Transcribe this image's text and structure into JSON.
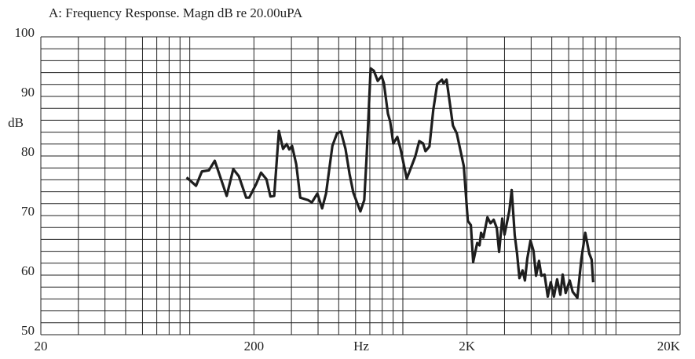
{
  "chart_data": {
    "type": "line",
    "title": "A: Frequency Response. Magn dB re 20.00uPA",
    "y_label": "dB",
    "x_label": "Hz",
    "xscale": "log",
    "xlim": [
      20,
      20000
    ],
    "xticks": [
      20,
      200,
      {
        "value": 2000,
        "label": "2K"
      },
      {
        "value": 20000,
        "label": "20K"
      }
    ],
    "xgrid": [
      30,
      40,
      50,
      60,
      70,
      80,
      90,
      100,
      300,
      400,
      500,
      600,
      700,
      800,
      900,
      1000,
      3000,
      4000,
      5000,
      6000,
      7000,
      8000,
      9000,
      10000
    ],
    "ylim": [
      50,
      100
    ],
    "yticks": [
      50,
      60,
      70,
      80,
      90,
      100
    ],
    "ygrid": [
      52,
      54,
      56,
      58,
      62,
      64,
      66,
      68,
      72,
      74,
      76,
      78,
      82,
      84,
      86,
      88,
      92,
      94,
      96,
      98
    ],
    "grid": true,
    "color": "#1e1e1e",
    "x": [
      96.6,
      107,
      114,
      123,
      131,
      149,
      160,
      170,
      184,
      190,
      205,
      216,
      229,
      239,
      249,
      262,
      274,
      285,
      293,
      302,
      316,
      330,
      359,
      374,
      397,
      418,
      436,
      467,
      491,
      512,
      538,
      562,
      586,
      632,
      659,
      676,
      706,
      731,
      762,
      795,
      815,
      851,
      872,
      902,
      942,
      975,
      1043,
      1143,
      1194,
      1245,
      1277,
      1333,
      1390,
      1450,
      1526,
      1551,
      1604,
      1718,
      1791,
      1932,
      2018,
      2085,
      2138,
      2233,
      2290,
      2329,
      2388,
      2494,
      2578,
      2668,
      2760,
      2830,
      2927,
      3000,
      3160,
      3242,
      3350,
      3436,
      3524,
      3648,
      3740,
      3838,
      3972,
      4102,
      4218,
      4356,
      4468,
      4624,
      4786,
      4944,
      5118,
      5296,
      5484,
      5624,
      5808,
      6068,
      6266,
      6592,
      6888,
      7178,
      7498,
      7692,
      7818
    ],
    "values": [
      76.4,
      75.0,
      77.4,
      77.6,
      79.2,
      73.3,
      77.8,
      76.6,
      73.0,
      73.0,
      75.3,
      77.2,
      76.1,
      73.2,
      73.3,
      84.2,
      81.2,
      82.0,
      81.1,
      81.7,
      78.6,
      73.0,
      72.6,
      72.2,
      73.7,
      71.2,
      73.7,
      81.7,
      83.8,
      84.1,
      81.2,
      77.0,
      73.8,
      70.7,
      72.6,
      79.9,
      94.7,
      94.3,
      92.6,
      93.4,
      92.2,
      87.1,
      85.8,
      82.1,
      83.2,
      81.2,
      76.2,
      79.9,
      82.5,
      82.1,
      80.8,
      81.6,
      87.8,
      92.1,
      92.8,
      92.2,
      92.8,
      85.1,
      83.8,
      78.3,
      69.1,
      68.4,
      62.2,
      65.4,
      65.0,
      67.1,
      66.3,
      69.7,
      68.7,
      69.3,
      67.9,
      63.9,
      69.5,
      66.8,
      70.8,
      74.3,
      66.7,
      63.6,
      59.5,
      60.8,
      59.1,
      62.8,
      65.8,
      64.1,
      59.9,
      62.4,
      59.9,
      60.1,
      56.4,
      58.8,
      56.4,
      59.3,
      56.7,
      60.1,
      57.0,
      59.1,
      57.2,
      56.2,
      62.8,
      67.1,
      63.6,
      62.6,
      58.8
    ]
  }
}
